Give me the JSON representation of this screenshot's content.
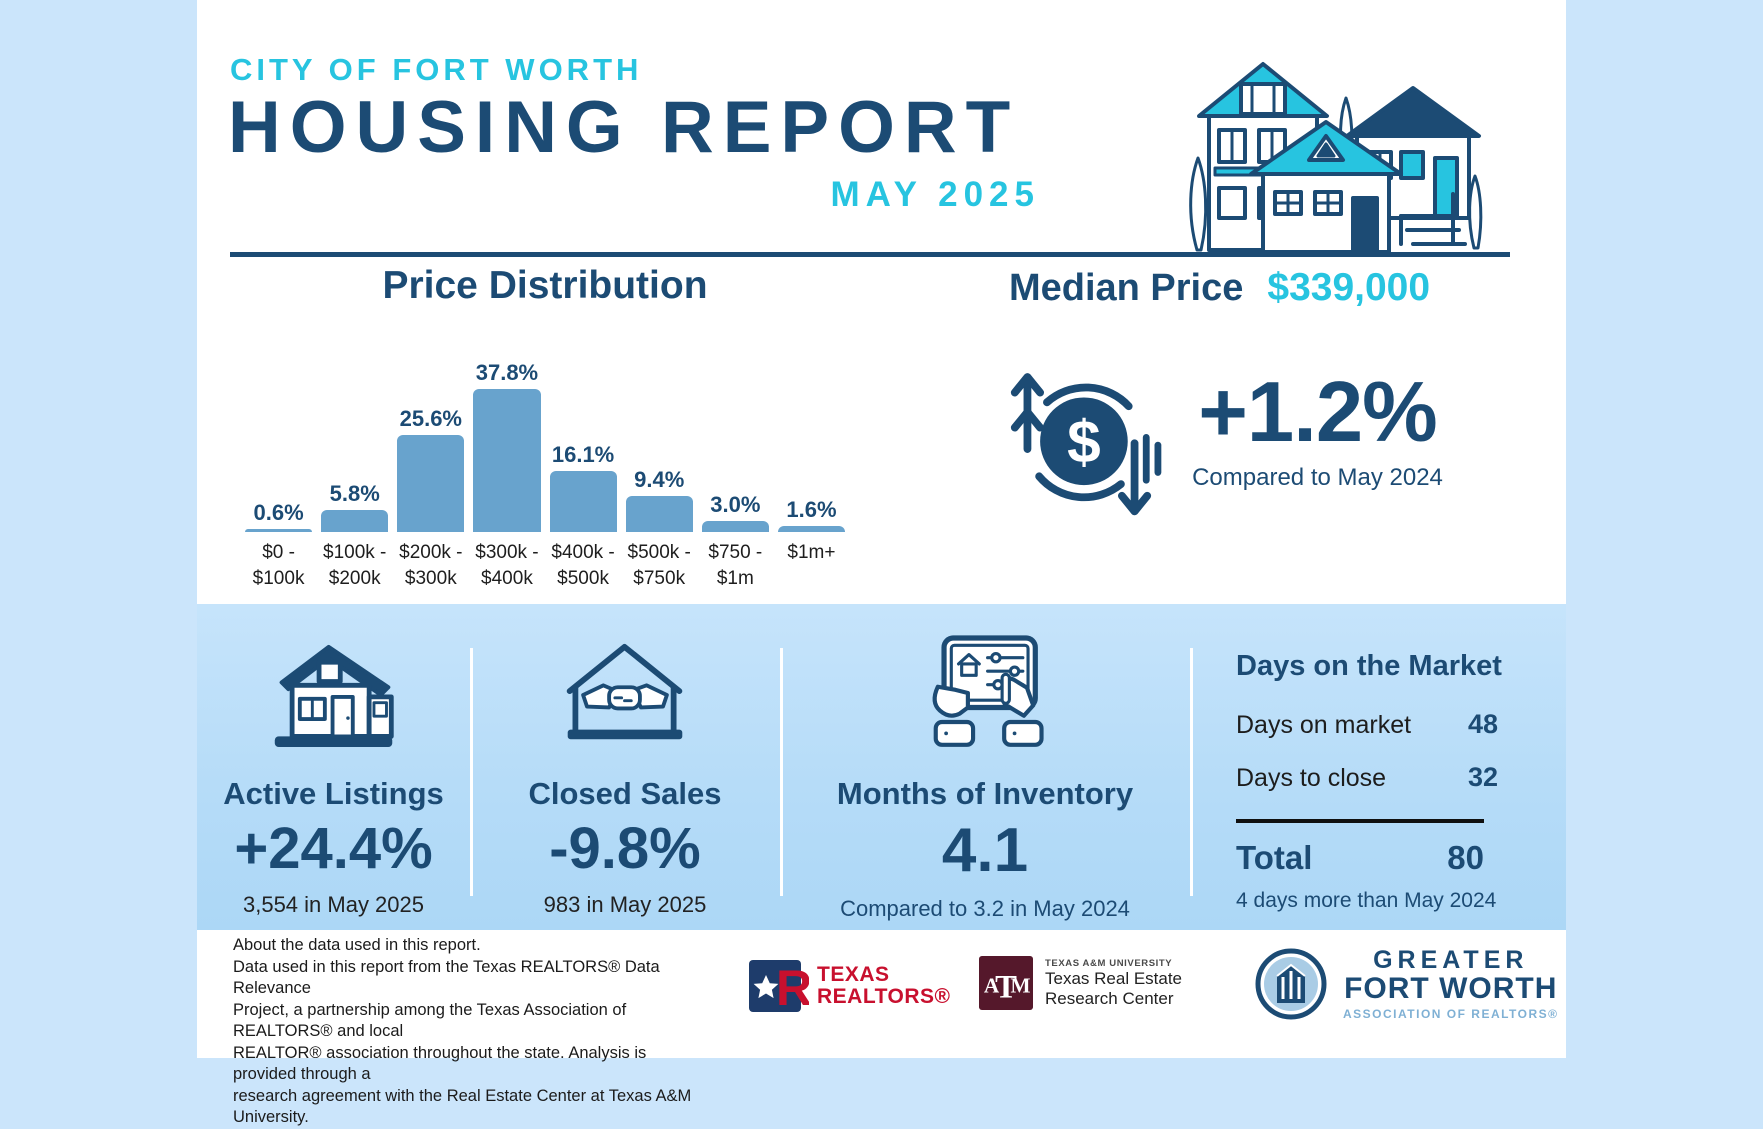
{
  "header": {
    "kicker": "CITY OF FORT WORTH",
    "title": "HOUSING REPORT",
    "subtitle": "MAY 2025"
  },
  "chart_data": {
    "type": "bar",
    "title": "Price Distribution",
    "categories": [
      "$0 - $100k",
      "$100k - $200k",
      "$200k - $300k",
      "$300k - $400k",
      "$400k - $500k",
      "$500k - $750k",
      "$750 - $1m",
      "$1m+"
    ],
    "values": [
      0.6,
      5.8,
      25.6,
      37.8,
      16.1,
      9.4,
      3.0,
      1.6
    ],
    "labels": [
      "0.6%",
      "5.8%",
      "25.6%",
      "37.8%",
      "16.1%",
      "9.4%",
      "3.0%",
      "1.6%"
    ],
    "ylim": [
      0,
      40
    ],
    "grid": false,
    "legend": false,
    "bar_color": "#68A3CD"
  },
  "median": {
    "label": "Median Price",
    "value": "$339,000",
    "change": "+1.2%",
    "note": "Compared to May 2024",
    "icon": "dollar-cycle-icon"
  },
  "stats": [
    {
      "icon": "house-icon",
      "label": "Active Listings",
      "value": "+24.4%",
      "note": "3,554 in May 2025"
    },
    {
      "icon": "handshake-house-icon",
      "label": "Closed Sales",
      "value": "-9.8%",
      "note": "983 in May 2025"
    },
    {
      "icon": "tablet-hands-icon",
      "label": "Months of Inventory",
      "value": "4.1",
      "note": "Compared to 3.2 in May 2024"
    }
  ],
  "days_on_market": {
    "title": "Days on the Market",
    "rows": [
      {
        "label": "Days on market",
        "value": "48"
      },
      {
        "label": "Days to close",
        "value": "32"
      }
    ],
    "total_label": "Total",
    "total_value": "80",
    "note": "4 days more than May 2024"
  },
  "footer": {
    "about": "About the data used in this report.\nData used in this report from the Texas REALTORS® Data Relevance\nProject, a partnership among the Texas Association of REALTORS® and local\nREALTOR® association throughout the state. Analysis is provided through a\nresearch agreement with the Real Estate Center at Texas A&M University.",
    "texas_realtors": {
      "line1": "TEXAS",
      "line2": "REALTORS®"
    },
    "tamu": {
      "line1": "TEXAS A&M UNIVERSITY",
      "line2": "Texas Real Estate",
      "line3": "Research Center"
    },
    "gfw": {
      "line1": "GREATER",
      "line2": "FORT WORTH",
      "line3": "ASSOCIATION OF REALTORS®"
    }
  },
  "colors": {
    "navy": "#1C4B74",
    "cyan": "#27C4E0",
    "bar_blue": "#68A3CD",
    "band_blue": "#B6DCF8",
    "page_margin_blue": "#CBE5FB",
    "texas_realtors_red": "#C8102E",
    "tamu_maroon": "#55182B"
  }
}
